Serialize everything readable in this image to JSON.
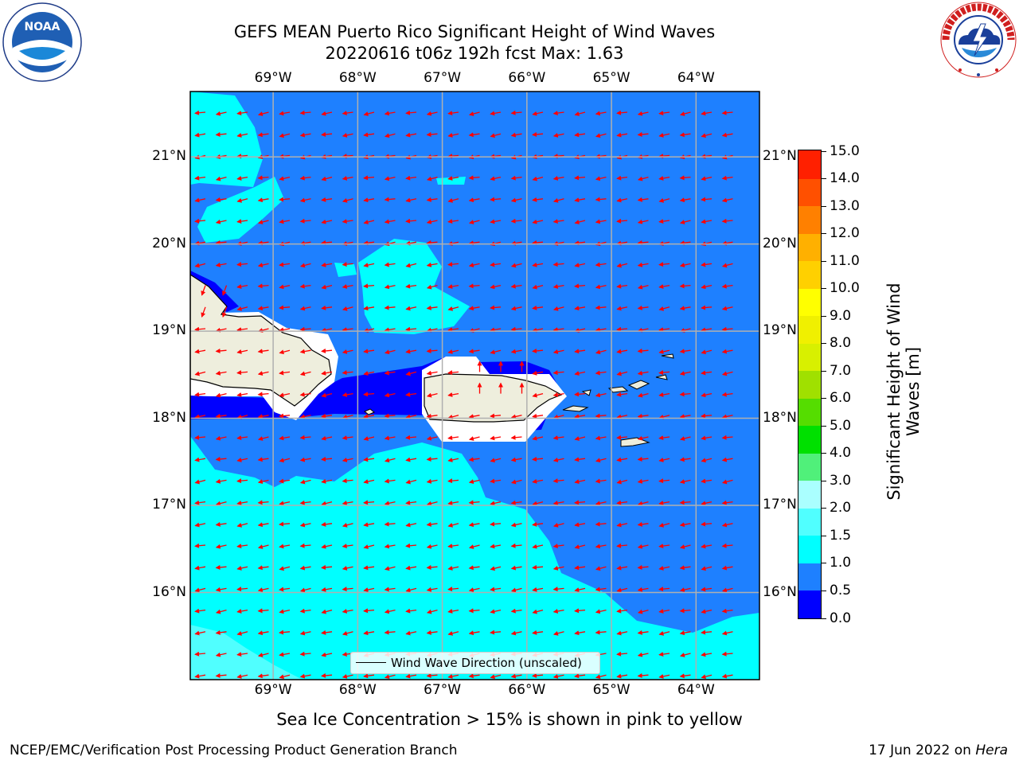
{
  "title": {
    "line1": "GEFS MEAN Puerto Rico Significant Height of Wind Waves",
    "line2": "20220616 t06z 192h fcst   Max: 1.63"
  },
  "map": {
    "lon_labels": [
      "69°W",
      "68°W",
      "67°W",
      "66°W",
      "65°W",
      "64°W"
    ],
    "lat_labels": [
      "21°N",
      "20°N",
      "19°N",
      "18°N",
      "17°N",
      "16°N"
    ],
    "lon_range": [
      -69.98,
      -63.25
    ],
    "lat_range": [
      15.0,
      21.75
    ],
    "legend_label": "Wind Wave Direction (unscaled)",
    "arrow_color": "#ff0000",
    "land_color": "#eeeedd"
  },
  "colorbar": {
    "title_line1": "Significant Height of Wind",
    "title_line2": "Waves [m]",
    "tick_labels": [
      "0.0",
      "0.5",
      "1.0",
      "1.5",
      "2.0",
      "3.0",
      "4.0",
      "5.0",
      "6.0",
      "7.0",
      "8.0",
      "9.0",
      "10.0",
      "11.0",
      "12.0",
      "13.0",
      "14.0",
      "15.0"
    ],
    "colors": [
      "#0000ff",
      "#1e80ff",
      "#00ffff",
      "#50ffff",
      "#aaffff",
      "#50f07a",
      "#00e000",
      "#55dd00",
      "#a0e000",
      "#d8f000",
      "#f0f000",
      "#ffff00",
      "#ffd000",
      "#ffb000",
      "#ff8000",
      "#ff5000",
      "#ff2000"
    ]
  },
  "subtitle": "Sea Ice Concentration > 15% is shown in pink to yellow",
  "footer": {
    "left": "NCEP/EMC/Verification Post Processing Product Generation Branch",
    "right_prefix": "17 Jun 2022 on ",
    "right_host": "Hera"
  },
  "logos": {
    "noaa_text": "NOAA",
    "nws_ring_text": "NATIONAL WEATHER SERVICE"
  }
}
